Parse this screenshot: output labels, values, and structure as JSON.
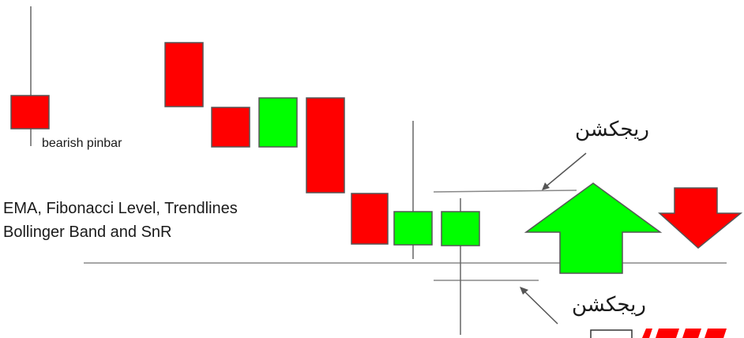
{
  "labels": {
    "pinbar": "bearish pinbar",
    "indicators_line1": "EMA, Fibonacci Level,  Trendlines",
    "indicators_line2": "Bollinger Band and SnR",
    "rejection_top": "ریجکشن",
    "rejection_bottom": "ریجکشن"
  },
  "colors": {
    "bearish": "#ff0000",
    "bullish": "#00ff00",
    "outline": "#555555",
    "wick": "#666666",
    "level_line": "#888888",
    "arrow_down": "#ff0000",
    "arrow_up": "#00ff00",
    "brand_text": "#ff0000"
  },
  "icons": {
    "arrow_up": "up-arrow-icon",
    "arrow_down": "down-arrow-icon",
    "pointer_top": "pointer-arrow-icon",
    "pointer_bottom": "pointer-arrow-icon"
  }
}
